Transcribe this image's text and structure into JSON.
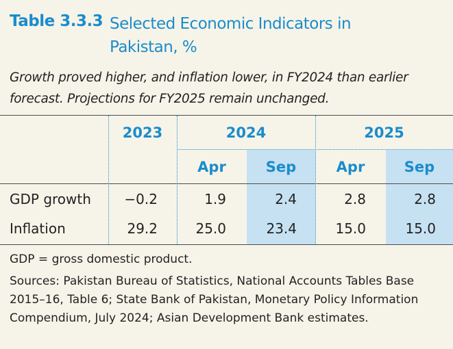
{
  "header": {
    "number": "Table 3.3.3",
    "title": "Selected Economic Indicators in Pakistan, %",
    "subtitle": "Growth proved higher, and inflation lower, in FY2024 than earlier forecast. Projections for FY2025 remain unchanged."
  },
  "table": {
    "years": [
      "2023",
      "2024",
      "2025"
    ],
    "subheaders": [
      "Apr",
      "Sep",
      "Apr",
      "Sep"
    ],
    "rows": [
      [
        "GDP growth",
        "−0.2",
        "1.9",
        "2.4",
        "2.8",
        "2.8"
      ],
      [
        "Inflation",
        "29.2",
        "25.0",
        "23.4",
        "15.0",
        "15.0"
      ]
    ]
  },
  "notes": [
    "GDP = gross domestic product.",
    "Sources: Pakistan Bureau of Statistics, National Accounts Tables Base 2015–16, Table 6; State Bank of Pakistan, Monetary Policy Information Compendium, July 2024; Asian Development Bank estimates."
  ]
}
